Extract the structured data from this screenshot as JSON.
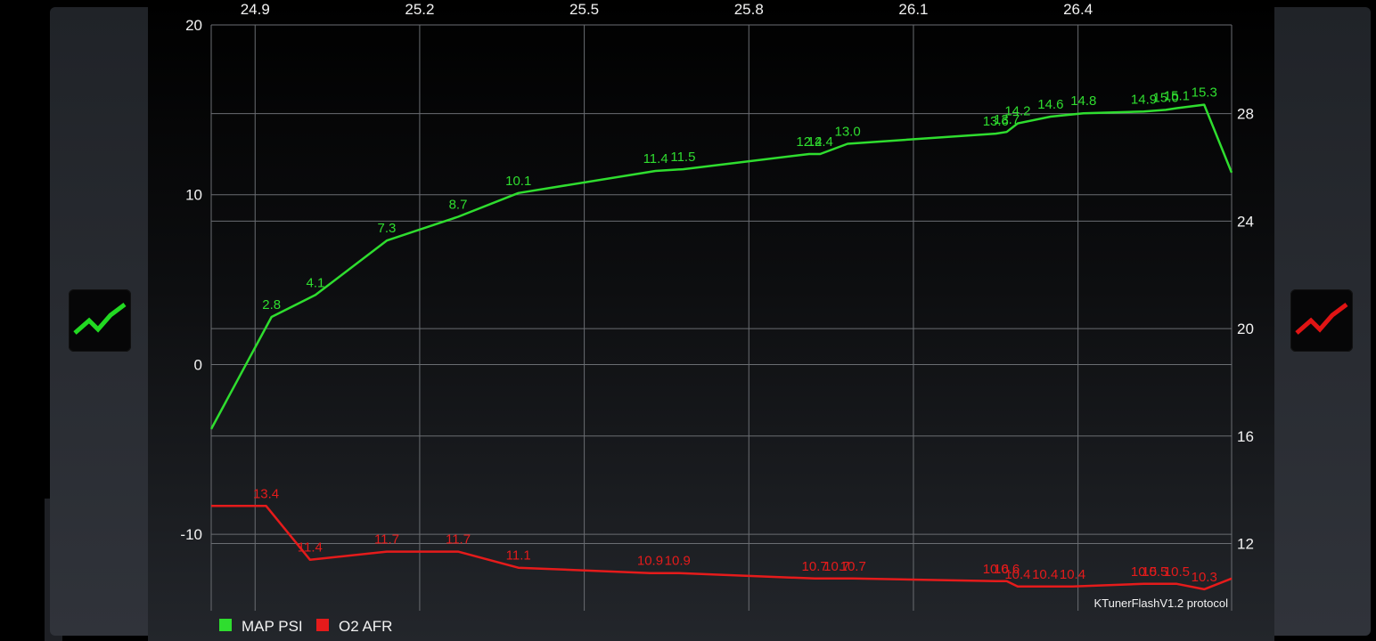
{
  "chart_data": {
    "type": "line",
    "x_ticks": [
      "24.9",
      "25.2",
      "25.5",
      "25.8",
      "26.1",
      "26.4"
    ],
    "xlim": [
      24.82,
      26.68
    ],
    "y_left_ticks": [
      "20",
      "10",
      "0",
      "-10"
    ],
    "y_left_lim": [
      -14.5,
      20
    ],
    "y_right_ticks": [
      "28",
      "24",
      "20",
      "16",
      "12"
    ],
    "y_right_lim": [
      9.5,
      31.3
    ],
    "grid": true,
    "legend_position": "bottom-left",
    "footer_note": "KTunerFlashV1.2 protocol",
    "series": [
      {
        "name": "MAP PSI",
        "axis": "left",
        "color": "#2fdd2f",
        "points": [
          {
            "x": 24.82,
            "y": -3.8
          },
          {
            "x": 24.93,
            "y": 2.8,
            "label": "2.8"
          },
          {
            "x": 25.01,
            "y": 4.1,
            "label": "4.1"
          },
          {
            "x": 25.14,
            "y": 7.3,
            "label": "7.3"
          },
          {
            "x": 25.27,
            "y": 8.7,
            "label": "8.7"
          },
          {
            "x": 25.38,
            "y": 10.1,
            "label": "10.1"
          },
          {
            "x": 25.63,
            "y": 11.4,
            "label": "11.4"
          },
          {
            "x": 25.68,
            "y": 11.5,
            "label": "11.5"
          },
          {
            "x": 25.91,
            "y": 12.4,
            "label": "12.4"
          },
          {
            "x": 25.93,
            "y": 12.4,
            "label": "12.4"
          },
          {
            "x": 25.98,
            "y": 13.0,
            "label": "13.0"
          },
          {
            "x": 26.25,
            "y": 13.6,
            "label": "13.6"
          },
          {
            "x": 26.27,
            "y": 13.7,
            "label": "13.7"
          },
          {
            "x": 26.29,
            "y": 14.2,
            "label": "14.2"
          },
          {
            "x": 26.35,
            "y": 14.6,
            "label": "14.6"
          },
          {
            "x": 26.41,
            "y": 14.8,
            "label": "14.8"
          },
          {
            "x": 26.52,
            "y": 14.9,
            "label": "14.9"
          },
          {
            "x": 26.56,
            "y": 15.0,
            "label": "15.0"
          },
          {
            "x": 26.58,
            "y": 15.1,
            "label": "15.1"
          },
          {
            "x": 26.63,
            "y": 15.3,
            "label": "15.3"
          },
          {
            "x": 26.68,
            "y": 11.3
          }
        ]
      },
      {
        "name": "O2 AFR",
        "axis": "right",
        "color": "#e51b1b",
        "points": [
          {
            "x": 24.82,
            "y": 13.4
          },
          {
            "x": 24.92,
            "y": 13.4,
            "label": "13.4"
          },
          {
            "x": 25.0,
            "y": 11.4,
            "label": "11.4"
          },
          {
            "x": 25.14,
            "y": 11.7,
            "label": "11.7"
          },
          {
            "x": 25.27,
            "y": 11.7,
            "label": "11.7"
          },
          {
            "x": 25.38,
            "y": 11.1,
            "label": "11.1"
          },
          {
            "x": 25.62,
            "y": 10.9,
            "label": "10.9"
          },
          {
            "x": 25.67,
            "y": 10.9,
            "label": "10.9"
          },
          {
            "x": 25.92,
            "y": 10.7,
            "label": "10.7"
          },
          {
            "x": 25.96,
            "y": 10.7,
            "label": "10.7"
          },
          {
            "x": 25.99,
            "y": 10.7,
            "label": "10.7"
          },
          {
            "x": 26.25,
            "y": 10.6,
            "label": "10.6"
          },
          {
            "x": 26.27,
            "y": 10.6,
            "label": "10.6"
          },
          {
            "x": 26.29,
            "y": 10.4,
            "label": "10.4"
          },
          {
            "x": 26.34,
            "y": 10.4,
            "label": "10.4"
          },
          {
            "x": 26.39,
            "y": 10.4,
            "label": "10.4"
          },
          {
            "x": 26.52,
            "y": 10.5,
            "label": "10.5"
          },
          {
            "x": 26.54,
            "y": 10.5,
            "label": "10.5"
          },
          {
            "x": 26.58,
            "y": 10.5,
            "label": "10.5"
          },
          {
            "x": 26.63,
            "y": 10.3,
            "label": "10.3"
          },
          {
            "x": 26.68,
            "y": 10.7
          }
        ]
      }
    ]
  },
  "controls": {
    "left_button_icon": "trend-line-green-icon",
    "left_button_color": "#22d922",
    "right_button_icon": "trend-line-red-icon",
    "right_button_color": "#e01414"
  }
}
